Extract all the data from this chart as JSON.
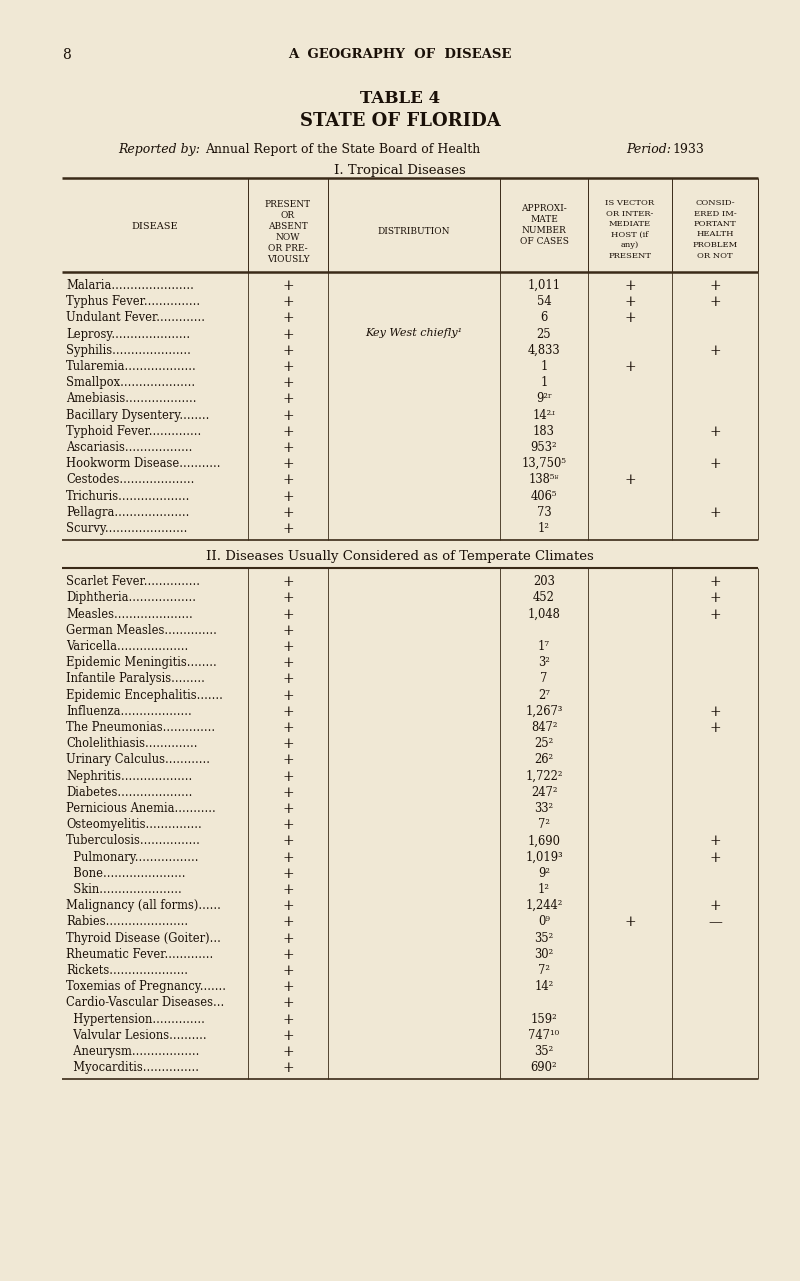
{
  "page_number": "8",
  "page_header": "A  GEOGRAPHY  OF  DISEASE",
  "table_number": "TABLE 4",
  "table_title": "STATE OF FLORIDA",
  "reported_by": "Reported by:",
  "reported_by_detail": "Annual Report of the State Board of Health",
  "period": "Period:",
  "period_detail": "1933",
  "section1_title": "I. Tropical Diseases",
  "section2_title": "II. Diseases Usually Considered as of Temperate Climates",
  "background_color": "#f0e8d5",
  "text_color": "#1a1008",
  "line_color": "#3a2a18",
  "col_positions": [
    62,
    248,
    328,
    500,
    588,
    672,
    758
  ],
  "header_texts": [
    [
      "DISEASE",
      155,
      235,
      "center",
      7.0
    ],
    [
      "PRESENT",
      288,
      208,
      "center",
      6.5
    ],
    [
      "OR",
      288,
      218,
      "center",
      6.5
    ],
    [
      "ABSENT",
      288,
      228,
      "center",
      6.5
    ],
    [
      "NOW",
      288,
      238,
      "center",
      6.5
    ],
    [
      "OR PRE-",
      288,
      248,
      "center",
      6.5
    ],
    [
      "VIOUSLY",
      288,
      258,
      "center",
      6.5
    ],
    [
      "DISTRIBUTION",
      414,
      233,
      "center",
      6.5
    ],
    [
      "APPROXI-",
      544,
      208,
      "center",
      6.5
    ],
    [
      "MATE",
      544,
      218,
      "center",
      6.5
    ],
    [
      "NUMBER",
      544,
      228,
      "center",
      6.5
    ],
    [
      "OF CASES",
      544,
      238,
      "center",
      6.5
    ],
    [
      "IS VECTOR",
      630,
      203,
      "center",
      6.0
    ],
    [
      "OR INTER-",
      630,
      213,
      "center",
      6.0
    ],
    [
      "MEDIATE",
      630,
      223,
      "center",
      6.0
    ],
    [
      "HOST (if",
      630,
      233,
      "center",
      6.0
    ],
    [
      "any)",
      630,
      243,
      "center",
      6.0
    ],
    [
      "PRESENT",
      630,
      253,
      "center",
      6.0
    ],
    [
      "CONSID-",
      715,
      203,
      "center",
      6.0
    ],
    [
      "ERED IM-",
      715,
      213,
      "center",
      6.0
    ],
    [
      "PORTANT",
      715,
      223,
      "center",
      6.0
    ],
    [
      "HEALTH",
      715,
      233,
      "center",
      6.0
    ],
    [
      "PROBLEM",
      715,
      243,
      "center",
      6.0
    ],
    [
      "OR NOT",
      715,
      253,
      "center",
      6.0
    ]
  ],
  "tropical_rows": [
    [
      "Malaria......................",
      "+",
      "",
      "1,011",
      "+",
      "+"
    ],
    [
      "Typhus Fever...............",
      "+",
      "",
      "54",
      "+",
      "+"
    ],
    [
      "Undulant Fever.............",
      "+",
      "",
      "6",
      "+",
      ""
    ],
    [
      "Leprosy.....................",
      "+",
      "Key West chiefly¹",
      "25",
      "",
      ""
    ],
    [
      "Syphilis.....................",
      "+",
      "",
      "4,833",
      "",
      "+"
    ],
    [
      "Tularemia...................",
      "+",
      "",
      "1",
      "+",
      ""
    ],
    [
      "Smallpox....................",
      "+",
      "",
      "1",
      "",
      ""
    ],
    [
      "Amebiasis...................",
      "+",
      "",
      "9²ʳ",
      "",
      ""
    ],
    [
      "Bacillary Dysentery........",
      "+",
      "",
      "14²ʴ",
      "",
      ""
    ],
    [
      "Typhoid Fever..............",
      "+",
      "",
      "183",
      "",
      "+"
    ],
    [
      "Ascariasis..................",
      "+",
      "",
      "953²",
      "",
      ""
    ],
    [
      "Hookworm Disease...........",
      "+",
      "",
      "13,750⁵",
      "",
      "+"
    ],
    [
      "Cestodes....................",
      "+",
      "",
      "138⁵ʶ",
      "+",
      ""
    ],
    [
      "Trichuris...................",
      "+",
      "",
      "406⁵",
      "",
      ""
    ],
    [
      "Pellagra....................",
      "+",
      "",
      "73",
      "",
      "+"
    ],
    [
      "Scurvy......................",
      "+",
      "",
      "1²",
      "",
      ""
    ]
  ],
  "temperate_rows": [
    [
      "Scarlet Fever...............",
      "+",
      "",
      "203",
      "",
      "+"
    ],
    [
      "Diphtheria..................",
      "+",
      "",
      "452",
      "",
      "+"
    ],
    [
      "Measles.....................",
      "+",
      "",
      "1,048",
      "",
      "+"
    ],
    [
      "German Measles..............",
      "+",
      "",
      "",
      "",
      ""
    ],
    [
      "Varicella...................",
      "+",
      "",
      "1⁷",
      "",
      ""
    ],
    [
      "Epidemic Meningitis........",
      "+",
      "",
      "3²",
      "",
      ""
    ],
    [
      "Infantile Paralysis.........",
      "+",
      "",
      "7",
      "",
      ""
    ],
    [
      "Epidemic Encephalitis.......",
      "+",
      "",
      "2⁷",
      "",
      ""
    ],
    [
      "Influenza...................",
      "+",
      "",
      "1,267³",
      "",
      "+"
    ],
    [
      "The Pneumonias..............",
      "+",
      "",
      "847²",
      "",
      "+"
    ],
    [
      "Cholelithiasis..............",
      "+",
      "",
      "25²",
      "",
      ""
    ],
    [
      "Urinary Calculus............",
      "+",
      "",
      "26²",
      "",
      ""
    ],
    [
      "Nephritis...................",
      "+",
      "",
      "1,722²",
      "",
      ""
    ],
    [
      "Diabetes....................",
      "+",
      "",
      "247²",
      "",
      ""
    ],
    [
      "Pernicious Anemia...........",
      "+",
      "",
      "33²",
      "",
      ""
    ],
    [
      "Osteomyelitis...............",
      "+",
      "",
      "7²",
      "",
      ""
    ],
    [
      "Tuberculosis................",
      "+",
      "",
      "1,690",
      "",
      "+"
    ],
    [
      "  Pulmonary.................",
      "+",
      "",
      "1,019³",
      "",
      "+"
    ],
    [
      "  Bone......................",
      "+",
      "",
      "9²",
      "",
      ""
    ],
    [
      "  Skin......................",
      "+",
      "",
      "1²",
      "",
      ""
    ],
    [
      "Malignancy (all forms)......",
      "+",
      "",
      "1,244²",
      "",
      "+"
    ],
    [
      "Rabies......................",
      "+",
      "",
      "0⁹",
      "+",
      "—"
    ],
    [
      "Thyroid Disease (Goiter)...",
      "+",
      "",
      "35²",
      "",
      ""
    ],
    [
      "Rheumatic Fever.............",
      "+",
      "",
      "30²",
      "",
      ""
    ],
    [
      "Rickets.....................",
      "+",
      "",
      "7²",
      "",
      ""
    ],
    [
      "Toxemias of Pregnancy.......",
      "+",
      "",
      "14²",
      "",
      ""
    ],
    [
      "Cardio-Vascular Diseases...",
      "+",
      "",
      "",
      "",
      ""
    ],
    [
      "  Hypertension..............",
      "+",
      "",
      "159²",
      "",
      ""
    ],
    [
      "  Valvular Lesions..........",
      "+",
      "",
      "747¹⁰",
      "",
      ""
    ],
    [
      "  Aneurysm..................",
      "+",
      "",
      "35²",
      "",
      ""
    ],
    [
      "  Myocarditis...............",
      "+",
      "",
      "690²",
      "",
      ""
    ]
  ]
}
